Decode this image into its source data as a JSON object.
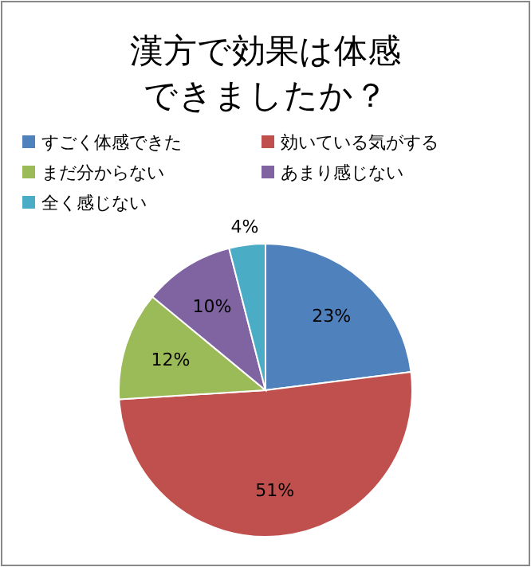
{
  "chart_data": {
    "type": "pie",
    "title": "漢方で効果は体感できましたか？",
    "categories": [
      "すごく体感できた",
      "効いている気がする",
      "まだ分からない",
      "あまり感じない",
      "全く感じない"
    ],
    "values": [
      23,
      51,
      12,
      10,
      4
    ],
    "value_labels": [
      "23%",
      "51%",
      "12%",
      "10%",
      "4%"
    ],
    "colors": [
      "#4f81bd",
      "#c0504d",
      "#9bbb59",
      "#8064a2",
      "#4bacc6"
    ],
    "legend": "top"
  }
}
